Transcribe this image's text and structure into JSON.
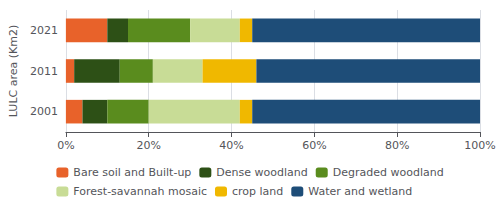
{
  "chart_data": {
    "type": "bar",
    "orientation": "horizontal",
    "stacked": true,
    "categories": [
      "2001",
      "2011",
      "2021"
    ],
    "series": [
      {
        "name": "Bare soil and Built-up",
        "color": "#e8622a",
        "values": [
          0.04,
          0.02,
          0.1
        ]
      },
      {
        "name": "Dense woodland",
        "color": "#2d5016",
        "values": [
          0.06,
          0.11,
          0.05
        ]
      },
      {
        "name": "Degraded woodland",
        "color": "#5a8c1e",
        "values": [
          0.1,
          0.08,
          0.15
        ]
      },
      {
        "name": "Forest-savannah mosaic",
        "color": "#c8dc96",
        "values": [
          0.22,
          0.12,
          0.12
        ]
      },
      {
        "name": "crop land",
        "color": "#f0b800",
        "values": [
          0.03,
          0.13,
          0.03
        ]
      },
      {
        "name": "Water and wetland",
        "color": "#1e4d78",
        "values": [
          0.55,
          0.54,
          0.55
        ]
      }
    ],
    "ylabel": "LULC area (Km2)",
    "xlim": [
      0,
      1
    ],
    "xticks": [
      {
        "value": 0,
        "label": "0%"
      },
      {
        "value": 0.2,
        "label": "20%"
      },
      {
        "value": 0.4,
        "label": "40%"
      },
      {
        "value": 0.6,
        "label": "60%"
      },
      {
        "value": 0.8,
        "label": "80%"
      },
      {
        "value": 1,
        "label": "100%"
      }
    ],
    "grid": true,
    "legend": "bottom"
  }
}
